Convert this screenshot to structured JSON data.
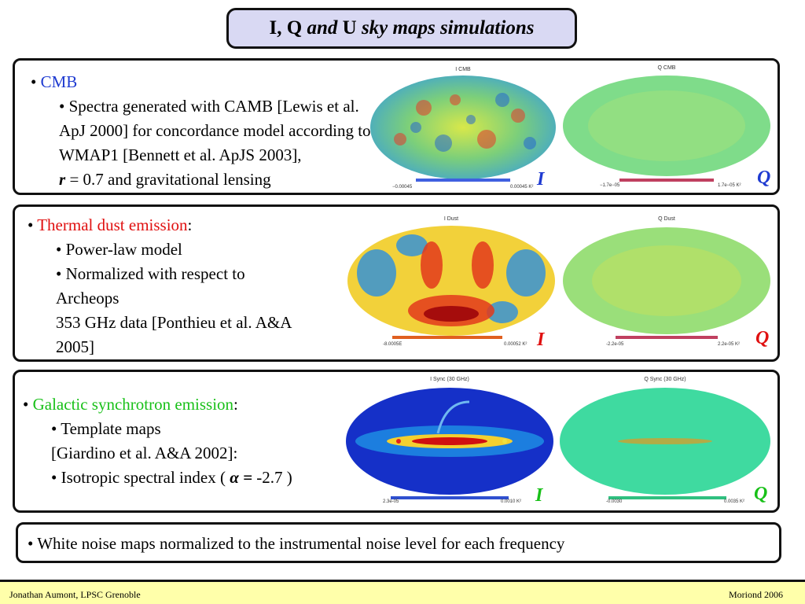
{
  "title": {
    "bold_I_Q": "I, Q ",
    "and": "and",
    "U": " U ",
    "rest": "sky maps simulations"
  },
  "panels": {
    "cmb": {
      "heading": "CMB",
      "lines": [
        "• Spectra generated with CAMB [Lewis et al.",
        "ApJ 2000] for concordance model according to",
        "WMAP1 [Bennett et al. ApJS 2003],"
      ],
      "last_r": "r",
      "last_rest": " = 0.7 and gravitational lensing",
      "map_I_title": "I CMB",
      "map_Q_title": "Q CMB",
      "map_I_scale_min": "−0.00045",
      "map_I_scale_max": "0.00045 K²",
      "map_Q_scale_min": "−1.7e−05",
      "map_Q_scale_max": "1.7e−05 K²",
      "label_I": "I",
      "label_Q": "Q"
    },
    "dust": {
      "heading": "Thermal dust emission",
      "colon": ":",
      "lines": [
        "• Power-law model",
        "• Normalized with respect to",
        "Archeops",
        "353 GHz data [Ponthieu et al. A&A",
        "2005]"
      ],
      "map_I_title": "I Dust",
      "map_Q_title": "Q Dust",
      "map_I_scale_min": "-8.0005E",
      "map_I_scale_max": "0.00052 K²",
      "map_Q_scale_min": "-2.2e-05",
      "map_Q_scale_max": "2.2e-05 K²",
      "label_I": "I",
      "label_Q": "Q"
    },
    "sync": {
      "heading": "Galactic synchrotron emission",
      "colon": ":",
      "lines": [
        "• Template maps",
        "[Giardino et al. A&A 2002]:"
      ],
      "iso_prefix": "• Isotropic spectral index ( ",
      "iso_alpha": "α =",
      "iso_suffix": " -2.7 )",
      "map_I_title": "I Sync (30 GHz)",
      "map_Q_title": "Q Sync (30 GHz)",
      "map_I_scale_min": "2.3e-05",
      "map_I_scale_max": "0.0010 K²",
      "map_Q_scale_min": "-0.0030",
      "map_Q_scale_max": "0.0035 K²",
      "label_I": "I",
      "label_Q": "Q"
    },
    "noise": {
      "text": "• White noise maps normalized to the instrumental noise level for each frequency"
    }
  },
  "footer": {
    "left": "Jonathan Aumont, LPSC Grenoble",
    "right": "Moriond 2006"
  },
  "colors": {
    "cmb_heading": "#1f3bd1",
    "dust_heading": "#e01010",
    "sync_heading": "#18c018",
    "footer_bg": "#ffffaa"
  }
}
